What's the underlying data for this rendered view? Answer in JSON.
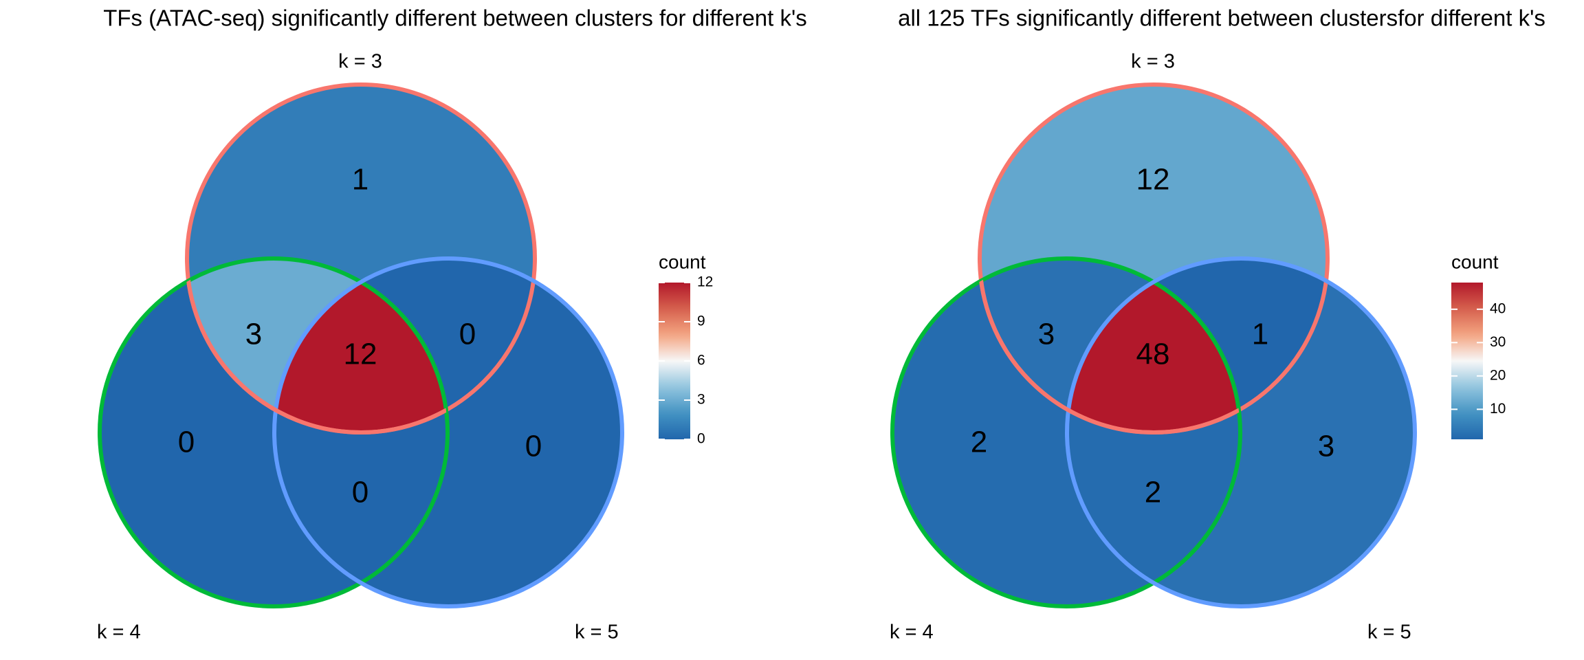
{
  "colors": {
    "set_k3": "#F8766D",
    "set_k4": "#00BA38",
    "set_k5": "#619CFF",
    "scale_low": "#2166AC",
    "scale_mid": "#F7F7F7",
    "scale_high": "#B2182B"
  },
  "chart_data": [
    {
      "type": "venn",
      "title": "TFs (ATAC-seq) significantly different between clusters for different k's",
      "sets": [
        "k = 3",
        "k = 4",
        "k = 5"
      ],
      "regions": {
        "only_k3": 1,
        "only_k4": 0,
        "only_k5": 0,
        "k3_k4": 3,
        "k3_k5": 0,
        "k4_k5": 0,
        "k3_k4_k5": 12
      },
      "legend": {
        "title": "count",
        "min": 0,
        "max": 12,
        "ticks": [
          "12",
          "9",
          "6",
          "3",
          "0"
        ],
        "tick_values": [
          12,
          9,
          6,
          3,
          0
        ],
        "placement": "right"
      }
    },
    {
      "type": "venn",
      "title": "all 125 TFs significantly different between clustersfor different k's",
      "sets": [
        "k = 3",
        "k = 4",
        "k = 5"
      ],
      "regions": {
        "only_k3": 12,
        "only_k4": 2,
        "only_k5": 3,
        "k3_k4": 3,
        "k3_k5": 1,
        "k4_k5": 2,
        "k3_k4_k5": 48
      },
      "legend": {
        "title": "count",
        "min": 1,
        "max": 48,
        "ticks": [
          "40",
          "30",
          "20",
          "10"
        ],
        "tick_values": [
          40,
          30,
          20,
          10
        ],
        "placement": "right"
      }
    }
  ]
}
